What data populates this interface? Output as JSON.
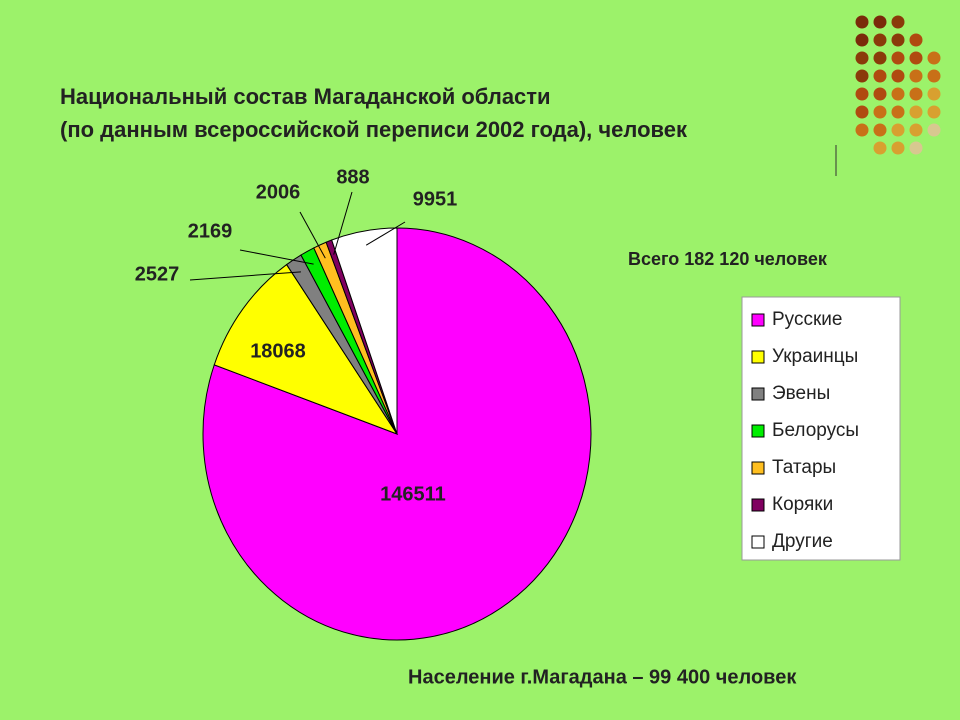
{
  "chart_data": {
    "type": "pie",
    "title": "Национальный состав Магаданской области",
    "subtitle": "(по данным всероссийской переписи 2002 года), человек",
    "categories": [
      "Русские",
      "Украинцы",
      "Эвены",
      "Белорусы",
      "Татары",
      "Коряки",
      "Другие"
    ],
    "values": [
      146511,
      18068,
      2527,
      2169,
      2006,
      888,
      9951
    ],
    "colors": [
      "#ff00ff",
      "#ffff00",
      "#808080",
      "#00ee00",
      "#ffbf20",
      "#800060",
      "#ffffff"
    ],
    "annotations": [
      "Всего 182 120 человек",
      "Население г.Магадана – 99 400 человек"
    ]
  }
}
